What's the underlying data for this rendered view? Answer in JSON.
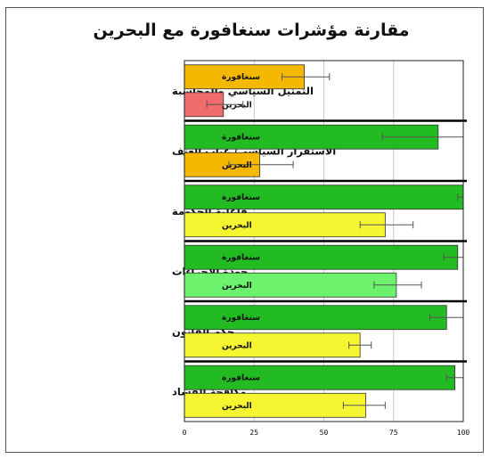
{
  "chart_data": {
    "type": "bar",
    "orientation": "horizontal",
    "title": "مقارنة مؤشرات سنغافورة مع البحرين",
    "xlim": [
      0,
      100
    ],
    "xticks": [
      "0",
      "25",
      "50",
      "75",
      "100"
    ],
    "grid": true,
    "groups": [
      {
        "label": "التمثيل السياسي والمحاسبة",
        "bars": [
          {
            "label": "سنغافورة",
            "value": 43,
            "err_low": 35,
            "err_high": 52,
            "color": "#f5b800"
          },
          {
            "label": "البحرين",
            "value": 14,
            "err_low": 8,
            "err_high": 21,
            "color": "#f06b6b"
          }
        ]
      },
      {
        "label": "الاستقرار السياسي/ غياب العنف",
        "bars": [
          {
            "label": "سنغافورة",
            "value": 91,
            "err_low": 71,
            "err_high": 100,
            "color": "#22bb22"
          },
          {
            "label": "البحرين",
            "value": 27,
            "err_low": 16,
            "err_high": 39,
            "color": "#f5b800"
          }
        ]
      },
      {
        "label": "فاعلية الحكومة",
        "bars": [
          {
            "label": "سنغافورة",
            "value": 100,
            "err_low": 98,
            "err_high": 100,
            "color": "#22bb22"
          },
          {
            "label": "البحرين",
            "value": 72,
            "err_low": 63,
            "err_high": 82,
            "color": "#f5f531"
          }
        ]
      },
      {
        "label": "جودة الإجراءات",
        "bars": [
          {
            "label": "سنغافورة",
            "value": 98,
            "err_low": 93,
            "err_high": 100,
            "color": "#22bb22"
          },
          {
            "label": "البحرين",
            "value": 76,
            "err_low": 68,
            "err_high": 85,
            "color": "#6df26d"
          }
        ]
      },
      {
        "label": "حكم القانون",
        "bars": [
          {
            "label": "سنغافورة",
            "value": 94,
            "err_low": 88,
            "err_high": 100,
            "color": "#22bb22"
          },
          {
            "label": "البحرين",
            "value": 63,
            "err_low": 59,
            "err_high": 67,
            "color": "#f5f531"
          }
        ]
      },
      {
        "label": "مكافحة الفساد",
        "bars": [
          {
            "label": "سنغافورة",
            "value": 97,
            "err_low": 94,
            "err_high": 100,
            "color": "#22bb22"
          },
          {
            "label": "البحرين",
            "value": 65,
            "err_low": 57,
            "err_high": 72,
            "color": "#f5f531"
          }
        ]
      }
    ]
  }
}
